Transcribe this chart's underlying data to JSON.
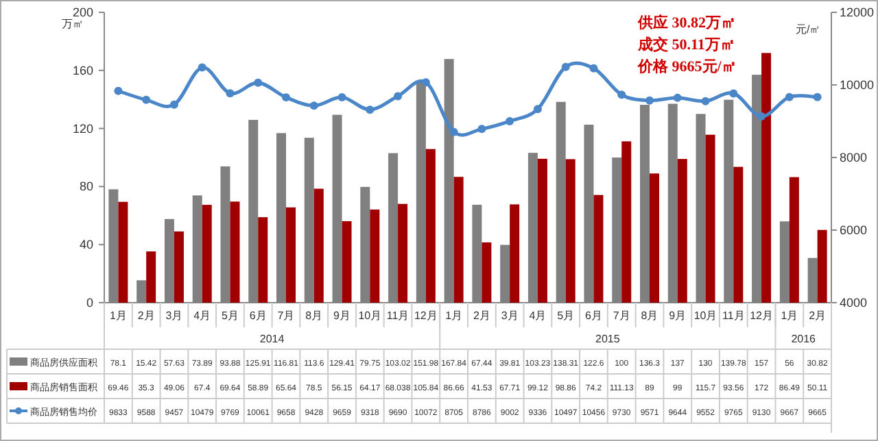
{
  "chart_data": {
    "type": "bar",
    "categories": [
      "1月",
      "2月",
      "3月",
      "4月",
      "5月",
      "6月",
      "7月",
      "8月",
      "9月",
      "10月",
      "11月",
      "12月",
      "1月",
      "2月",
      "3月",
      "4月",
      "5月",
      "6月",
      "7月",
      "8月",
      "9月",
      "10月",
      "11月",
      "12月",
      "1月",
      "2月"
    ],
    "series": [
      {
        "name": "商品房供应面积",
        "color": "#808080",
        "values": [
          78.1,
          15.42,
          57.63,
          73.89,
          93.88,
          125.91,
          116.81,
          113.6,
          129.41,
          79.75,
          103.02,
          151.98,
          167.84,
          67.44,
          39.81,
          103.23,
          138.31,
          122.6,
          100,
          136.3,
          137,
          130,
          139.78,
          157,
          56,
          30.82
        ]
      },
      {
        "name": "商品房销售面积",
        "color": "#a00000",
        "values": [
          69.46,
          35.3,
          49.06,
          67.4,
          69.64,
          58.89,
          65.64,
          78.5,
          56.15,
          64.17,
          68.038,
          105.84,
          86.66,
          41.53,
          67.71,
          99.12,
          98.86,
          74.2,
          111.13,
          89,
          99,
          115.7,
          93.56,
          172,
          86.49,
          50.11
        ]
      },
      {
        "name": "商品房销售均价",
        "type": "line",
        "axis": "y2",
        "color": "#4a86c8",
        "values": [
          9833,
          9588,
          9457,
          10479,
          9769,
          10061,
          9658,
          9428,
          9659,
          9318,
          9690,
          10072,
          8705,
          8786,
          9002,
          9336,
          10497,
          10456,
          9730,
          9571,
          9644,
          9552,
          9765,
          9130,
          9667,
          9665
        ]
      }
    ],
    "ylim": [
      0,
      200
    ],
    "yticks": [
      0,
      40,
      80,
      120,
      160,
      200
    ],
    "y2lim": [
      4000,
      12000
    ],
    "y2ticks": [
      4000,
      6000,
      8000,
      10000,
      12000
    ],
    "ylabel": "万㎡",
    "y2label": "元/㎡",
    "marker": "circle",
    "grid": false,
    "legend": "bottom",
    "data_labels": true,
    "annotations": [
      "2014",
      "2015",
      "2016",
      "供应 30.82万㎡",
      "成交 50.11万㎡",
      "价格 9665元/㎡"
    ]
  }
}
